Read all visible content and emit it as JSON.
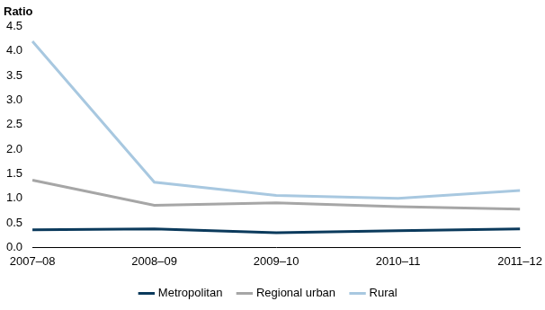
{
  "chart_data": {
    "type": "line",
    "ylabel": "Ratio",
    "categories": [
      "2007–08",
      "2008–09",
      "2009–10",
      "2010–11",
      "2011–12"
    ],
    "series": [
      {
        "name": "Metropolitan",
        "color": "#0b3a5c",
        "values": [
          0.36,
          0.38,
          0.3,
          0.34,
          0.38
        ]
      },
      {
        "name": "Regional urban",
        "color": "#a6a6a6",
        "values": [
          1.37,
          0.86,
          0.91,
          0.83,
          0.78
        ]
      },
      {
        "name": "Rural",
        "color": "#a8c8e0",
        "values": [
          4.2,
          1.33,
          1.06,
          1.0,
          1.16
        ]
      }
    ],
    "ylim": [
      0,
      4.5
    ],
    "yticks": [
      {
        "value": 0,
        "label": "0.0"
      },
      0.5,
      {
        "value": 1,
        "label": "1.0"
      },
      1.5,
      {
        "value": 2,
        "label": "2.0"
      },
      2.5,
      {
        "value": 3,
        "label": "3.0"
      },
      3.5,
      {
        "value": 4,
        "label": "4.0"
      },
      4.5
    ],
    "grid": false,
    "legend": "bottom"
  }
}
